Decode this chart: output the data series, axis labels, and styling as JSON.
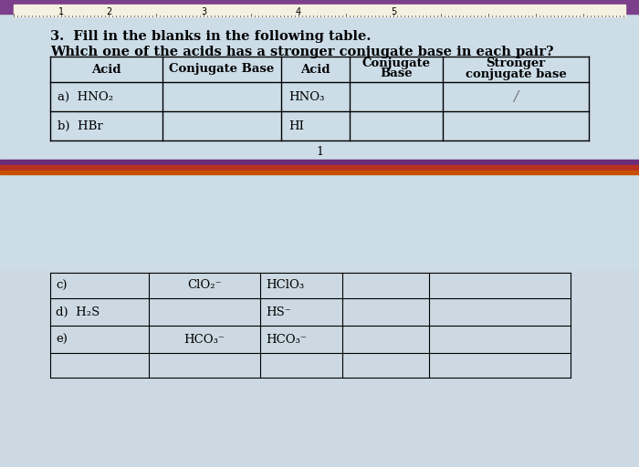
{
  "title_line1": "3.  Fill in the blanks in the following table.",
  "title_line2": "Which one of the acids has a stronger conjugate base in each pair?",
  "bg_color_top": "#ccdde8",
  "bg_color_bottom": "#ccd9e2",
  "ruler_bg": "#f5f0e0",
  "ruler_border_purple": "#7b3f8c",
  "ruler_border_orange": "#c85000",
  "divider_purple": "#6b2d7a",
  "divider_red": "#b83020",
  "divider_orange": "#c85000",
  "table1_headers": [
    "Acid",
    "Conjugate Base",
    "Acid",
    "Conjugate\nBase",
    "Stronger\nconjugate base"
  ],
  "table1_rows": [
    [
      "a)  HNO₂",
      "",
      "HNO₃",
      "",
      ""
    ],
    [
      "b)  HBr",
      "",
      "HI",
      "",
      ""
    ]
  ],
  "table2_rows": [
    [
      "c)",
      "ClO₂⁻",
      "HClO₃",
      "",
      ""
    ],
    [
      "d)  H₂S",
      "",
      "HS⁻",
      "",
      ""
    ],
    [
      "e)",
      "HCO₃⁻",
      "HCO₃⁻",
      "",
      ""
    ]
  ],
  "page_num": "1",
  "font_size_title": 10.5,
  "font_size_table": 9.5,
  "font_size_ruler": 7
}
